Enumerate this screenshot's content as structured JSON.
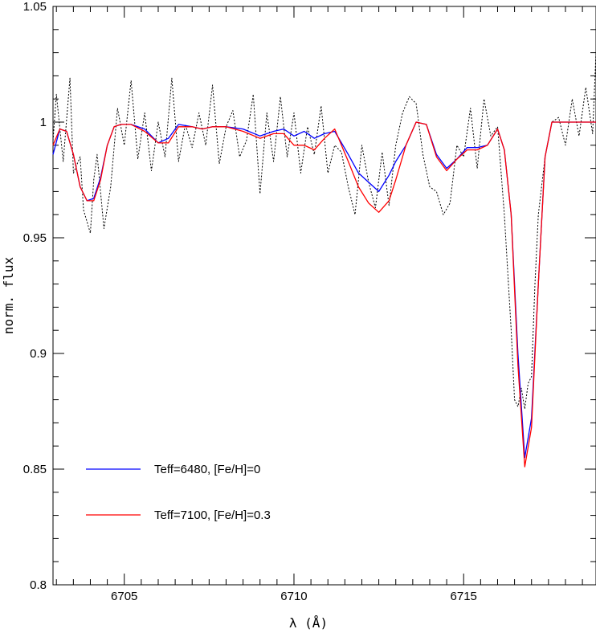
{
  "chart_data": {
    "type": "line",
    "title": "",
    "xlabel": "λ (Å)",
    "ylabel": "norm. flux",
    "xlim": [
      6702.9,
      6718.9
    ],
    "ylim": [
      0.8,
      1.05
    ],
    "x_ticks": [
      6705,
      6710,
      6715
    ],
    "x_tick_labels": [
      "6705",
      "6710",
      "6715"
    ],
    "y_ticks": [
      0.8,
      0.85,
      0.9,
      0.95,
      1,
      1.05
    ],
    "y_tick_labels": [
      "0.8",
      "0.85",
      "0.9",
      "0.95",
      "1",
      "1.05"
    ],
    "grid": false,
    "legend_position": "bottom-left",
    "series": [
      {
        "name": "Teff=6480, [Fe/H]=0",
        "color": "#0000ff",
        "style": "solid",
        "x": [
          6702.9,
          6703.1,
          6703.3,
          6703.5,
          6703.7,
          6703.9,
          6704.1,
          6704.3,
          6704.5,
          6704.7,
          6704.9,
          6705.2,
          6705.6,
          6706.0,
          6706.3,
          6706.6,
          6707.0,
          6707.3,
          6707.6,
          6708.0,
          6708.5,
          6709.0,
          6709.4,
          6709.7,
          6710.0,
          6710.3,
          6710.6,
          6710.9,
          6711.2,
          6711.6,
          6711.9,
          6712.2,
          6712.5,
          6712.8,
          6713.0,
          6713.3,
          6713.6,
          6713.9,
          6714.2,
          6714.5,
          6714.8,
          6715.1,
          6715.4,
          6715.7,
          6716.0,
          6716.2,
          6716.4,
          6716.6,
          6716.8,
          6717.0,
          6717.2,
          6717.4,
          6717.6,
          6718.0,
          6718.9
        ],
        "y": [
          0.986,
          0.997,
          0.996,
          0.986,
          0.972,
          0.966,
          0.967,
          0.976,
          0.99,
          0.998,
          0.999,
          0.999,
          0.997,
          0.991,
          0.993,
          0.999,
          0.998,
          0.997,
          0.998,
          0.998,
          0.997,
          0.994,
          0.996,
          0.997,
          0.994,
          0.996,
          0.993,
          0.995,
          0.996,
          0.986,
          0.978,
          0.974,
          0.97,
          0.977,
          0.983,
          0.99,
          1.0,
          0.999,
          0.986,
          0.98,
          0.984,
          0.989,
          0.989,
          0.99,
          0.997,
          0.988,
          0.96,
          0.9,
          0.855,
          0.872,
          0.93,
          0.985,
          1.0,
          1.0,
          1.0
        ]
      },
      {
        "name": "Teff=7100, [Fe/H]=0.3",
        "color": "#ff0000",
        "style": "solid",
        "x": [
          6702.9,
          6703.1,
          6703.3,
          6703.5,
          6703.7,
          6703.9,
          6704.1,
          6704.3,
          6704.5,
          6704.7,
          6704.9,
          6705.2,
          6705.6,
          6706.0,
          6706.3,
          6706.6,
          6707.0,
          6707.3,
          6707.6,
          6708.0,
          6708.5,
          6709.0,
          6709.4,
          6709.7,
          6710.0,
          6710.3,
          6710.6,
          6710.9,
          6711.2,
          6711.6,
          6711.9,
          6712.2,
          6712.5,
          6712.8,
          6713.0,
          6713.3,
          6713.6,
          6713.9,
          6714.2,
          6714.5,
          6714.8,
          6715.1,
          6715.4,
          6715.7,
          6716.0,
          6716.2,
          6716.4,
          6716.6,
          6716.8,
          6717.0,
          6717.2,
          6717.4,
          6717.6,
          6718.0,
          6718.9
        ],
        "y": [
          0.99,
          0.997,
          0.996,
          0.986,
          0.972,
          0.966,
          0.966,
          0.975,
          0.99,
          0.998,
          0.999,
          0.999,
          0.996,
          0.991,
          0.991,
          0.998,
          0.998,
          0.997,
          0.998,
          0.998,
          0.996,
          0.993,
          0.995,
          0.995,
          0.99,
          0.99,
          0.988,
          0.993,
          0.997,
          0.983,
          0.972,
          0.965,
          0.961,
          0.966,
          0.975,
          0.99,
          1.0,
          0.999,
          0.985,
          0.979,
          0.984,
          0.988,
          0.988,
          0.99,
          0.997,
          0.988,
          0.96,
          0.895,
          0.851,
          0.868,
          0.93,
          0.985,
          1.0,
          1.0,
          1.0
        ]
      },
      {
        "color": "#000000",
        "style": "dotted",
        "x": [
          6702.9,
          6703.0,
          6703.2,
          6703.4,
          6703.5,
          6703.7,
          6703.8,
          6704.0,
          6704.1,
          6704.2,
          6704.4,
          6704.6,
          6704.8,
          6705.0,
          6705.2,
          6705.4,
          6705.6,
          6705.8,
          6706.0,
          6706.2,
          6706.4,
          6706.6,
          6706.8,
          6707.0,
          6707.2,
          6707.4,
          6707.6,
          6707.8,
          6708.0,
          6708.2,
          6708.4,
          6708.6,
          6708.8,
          6709.0,
          6709.2,
          6709.4,
          6709.6,
          6709.8,
          6710.0,
          6710.2,
          6710.4,
          6710.6,
          6710.8,
          6711.0,
          6711.2,
          6711.4,
          6711.6,
          6711.8,
          6712.0,
          6712.2,
          6712.4,
          6712.6,
          6712.8,
          6713.0,
          6713.2,
          6713.4,
          6713.6,
          6713.8,
          6714.0,
          6714.2,
          6714.4,
          6714.6,
          6714.8,
          6715.0,
          6715.2,
          6715.4,
          6715.6,
          6715.8,
          6716.0,
          6716.2,
          6716.4,
          6716.5,
          6716.6,
          6716.7,
          6716.8,
          6716.9,
          6717.0,
          6717.1,
          6717.2,
          6717.4,
          6717.6,
          6717.8,
          6718.0,
          6718.2,
          6718.4,
          6718.6,
          6718.8,
          6718.9
        ],
        "y": [
          0.992,
          1.012,
          0.983,
          1.019,
          0.978,
          0.985,
          0.962,
          0.952,
          0.975,
          0.986,
          0.954,
          0.972,
          1.006,
          0.99,
          1.018,
          0.984,
          1.004,
          0.979,
          1.0,
          0.985,
          1.019,
          0.983,
          0.999,
          0.989,
          1.004,
          0.99,
          1.016,
          0.982,
          0.998,
          1.005,
          0.985,
          0.992,
          1.012,
          0.969,
          1.004,
          0.983,
          1.011,
          0.985,
          1.004,
          0.978,
          0.998,
          0.986,
          1.007,
          0.978,
          0.99,
          0.987,
          0.972,
          0.96,
          0.99,
          0.974,
          0.963,
          0.987,
          0.964,
          0.99,
          1.004,
          1.011,
          1.008,
          0.986,
          0.972,
          0.97,
          0.96,
          0.965,
          0.99,
          0.985,
          1.006,
          0.98,
          1.01,
          0.994,
          0.998,
          0.96,
          0.91,
          0.88,
          0.877,
          0.885,
          0.876,
          0.887,
          0.89,
          0.93,
          0.96,
          0.985,
          1.0,
          1.002,
          0.99,
          1.01,
          0.994,
          1.015,
          0.995,
          1.03
        ]
      }
    ]
  }
}
